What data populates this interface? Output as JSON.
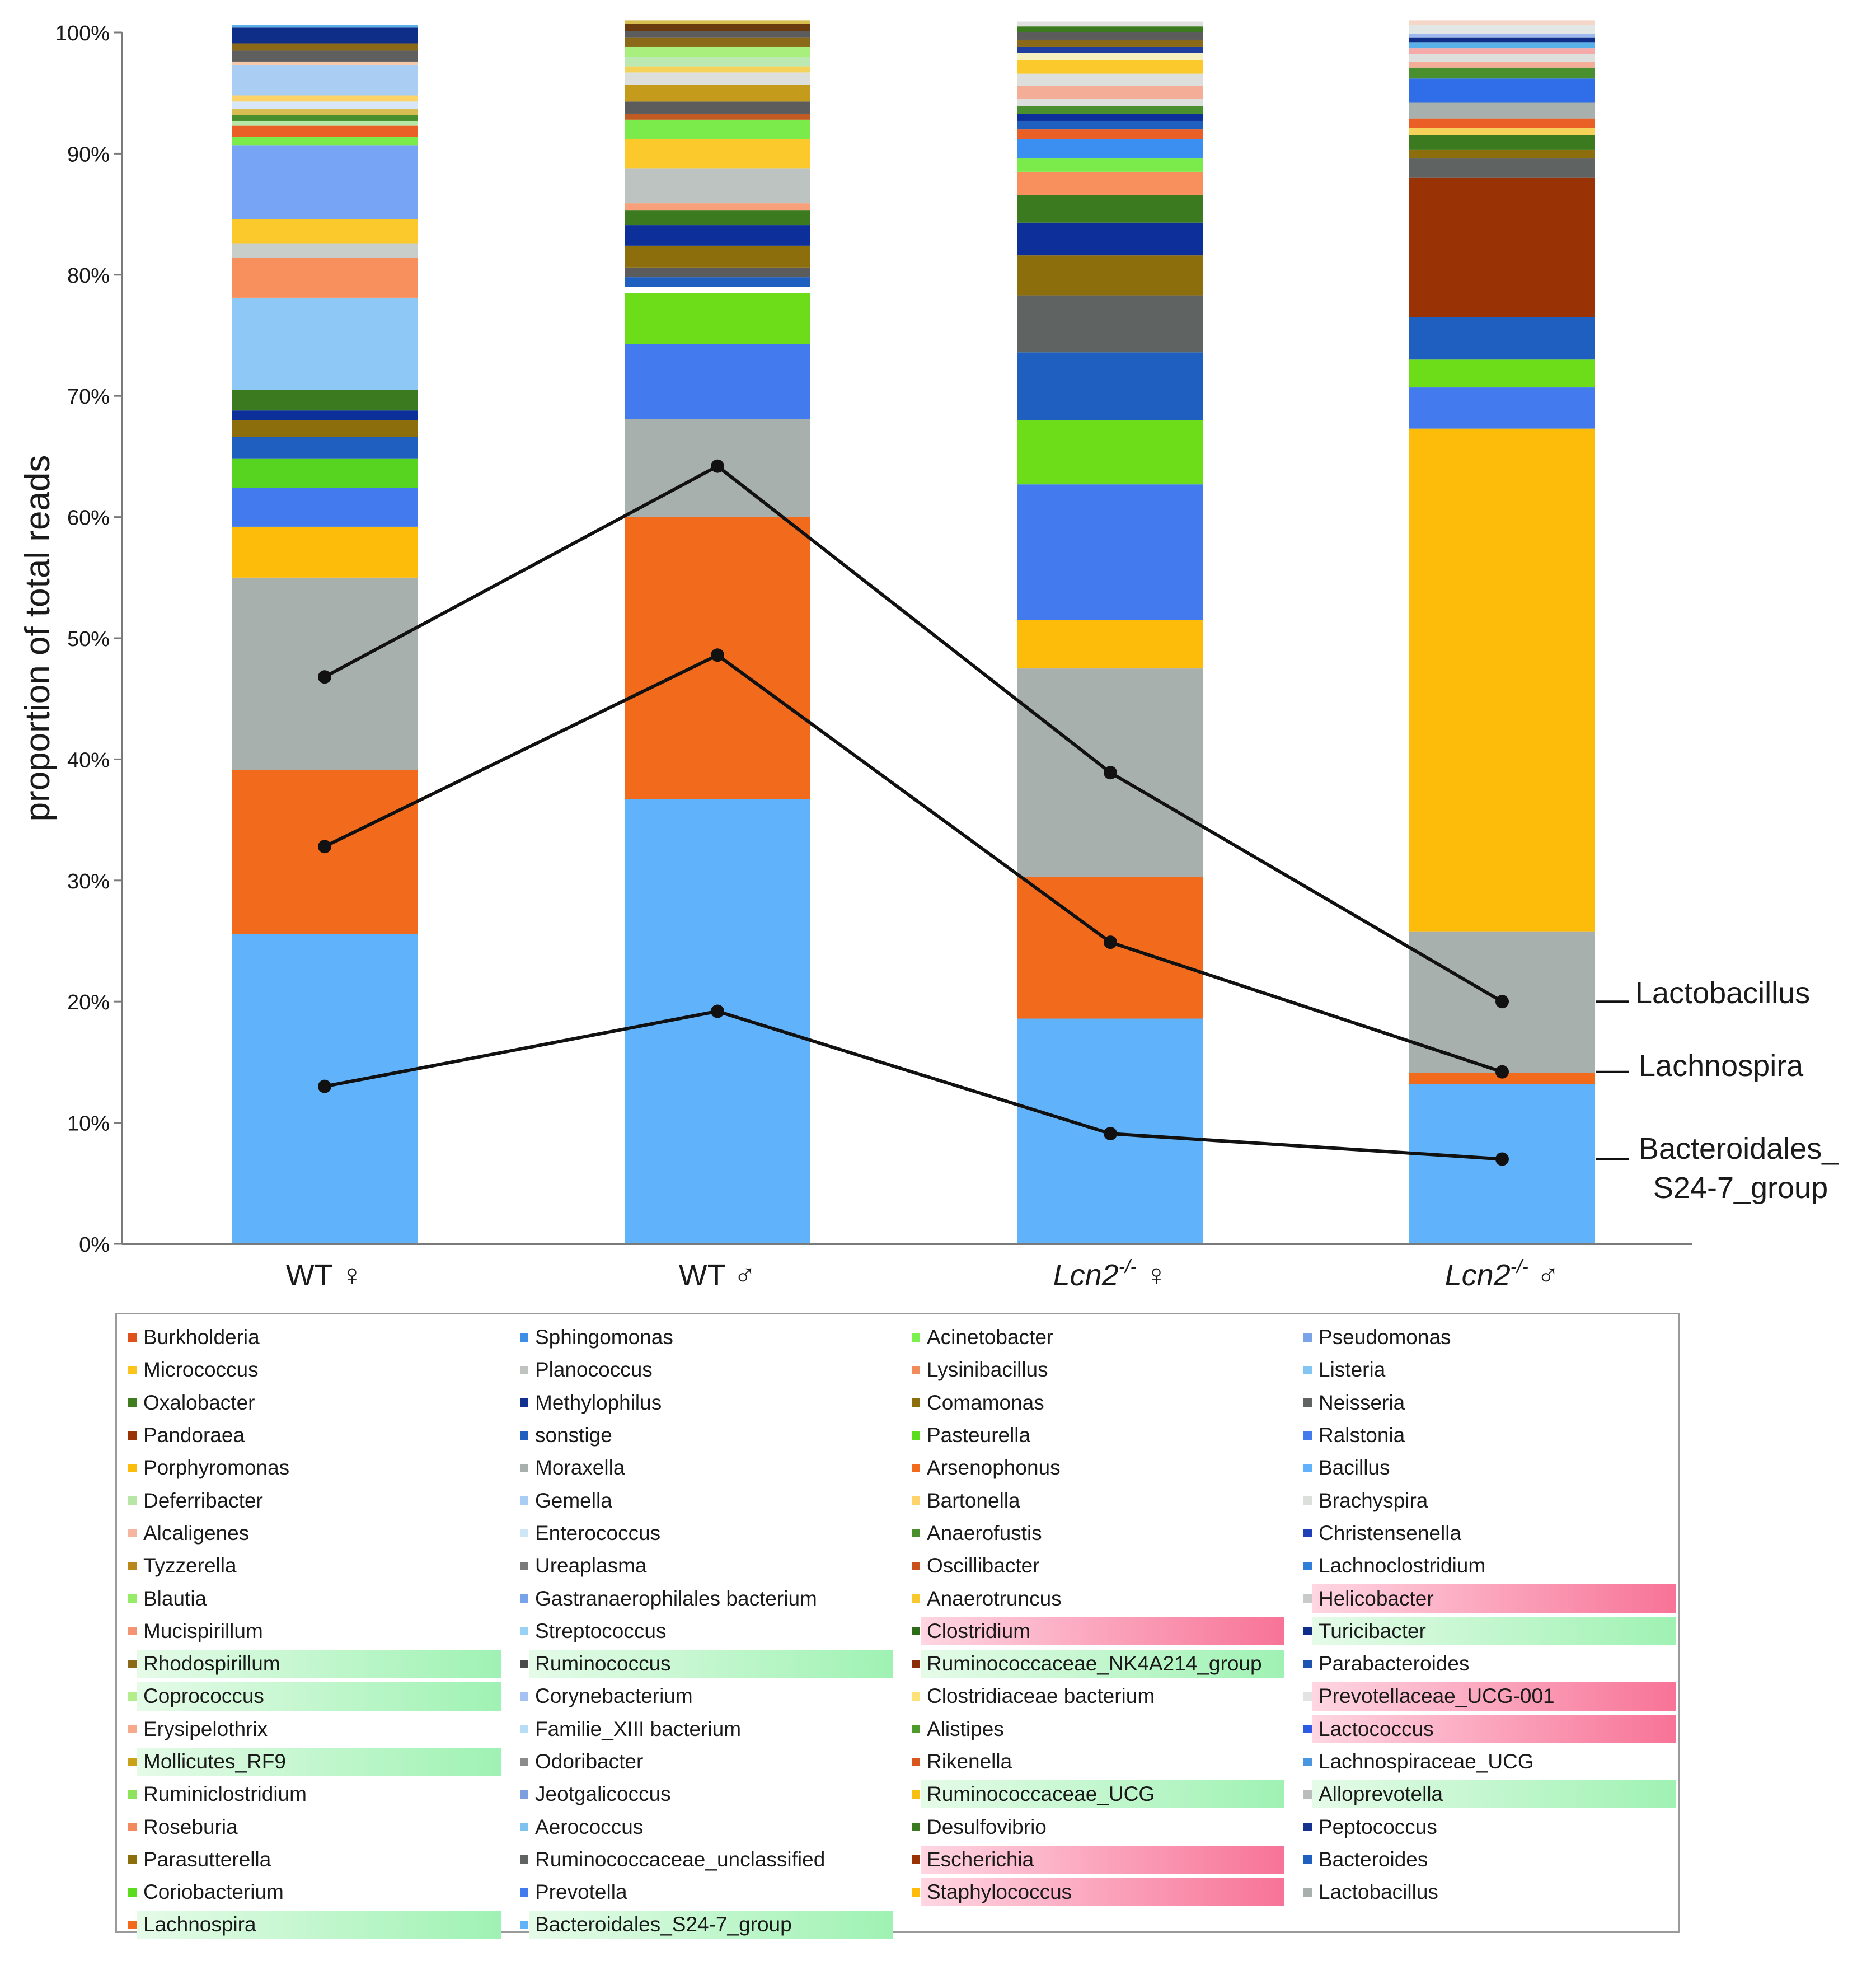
{
  "chart_data": {
    "type": "bar",
    "stacked": true,
    "ylabel": "proportion of total reads",
    "ylim": [
      0,
      100
    ],
    "y_ticks": [
      "0%",
      "10%",
      "20%",
      "30%",
      "40%",
      "50%",
      "60%",
      "70%",
      "80%",
      "90%",
      "100%"
    ],
    "groups": [
      {
        "prefix": "WT",
        "sup": "",
        "sym": "♀"
      },
      {
        "prefix": "WT",
        "sup": "",
        "sym": "♂"
      },
      {
        "prefix": "Lcn2",
        "sup": "-/-",
        "sym": "♀"
      },
      {
        "prefix": "Lcn2",
        "sup": "-/-",
        "sym": "♂"
      }
    ],
    "stacks": [
      [
        {
          "v": 25.6,
          "c": "#60b3fa"
        },
        {
          "v": 13.5,
          "c": "#f26a1b"
        },
        {
          "v": 15.9,
          "c": "#a8b0ad"
        },
        {
          "v": 4.2,
          "c": "#fdbb0a"
        },
        {
          "v": 3.2,
          "c": "#437bef"
        },
        {
          "v": 2.4,
          "c": "#57d41f"
        },
        {
          "v": 1.8,
          "c": "#1e5fbf"
        },
        {
          "v": 1.4,
          "c": "#8c6e0d"
        },
        {
          "v": 0.8,
          "c": "#0c2f99"
        },
        {
          "v": 1.7,
          "c": "#3c7a1f"
        },
        {
          "v": 7.6,
          "c": "#8dc8f6"
        },
        {
          "v": 3.3,
          "c": "#f8905d"
        },
        {
          "v": 1.2,
          "c": "#c8cec9"
        },
        {
          "v": 2.0,
          "c": "#fcc92c"
        },
        {
          "v": 6.1,
          "c": "#77a4f5"
        },
        {
          "v": 0.7,
          "c": "#7bea4b"
        },
        {
          "v": 0.9,
          "c": "#e95f26"
        },
        {
          "v": 0.4,
          "c": "#b8e6a6"
        },
        {
          "v": 0.5,
          "c": "#4a8f2d"
        },
        {
          "v": 0.5,
          "c": "#d8be50"
        },
        {
          "v": 0.6,
          "c": "#d7e7f7"
        },
        {
          "v": 0.5,
          "c": "#fdd36a"
        },
        {
          "v": 2.5,
          "c": "#aacdf3"
        },
        {
          "v": 0.3,
          "c": "#f5c9a8"
        },
        {
          "v": 0.9,
          "c": "#5f5f5f"
        },
        {
          "v": 0.6,
          "c": "#8a6a18"
        },
        {
          "v": 1.3,
          "c": "#0f2e88"
        },
        {
          "v": 0.2,
          "c": "#5ab0e8"
        }
      ],
      [
        {
          "v": 36.7,
          "c": "#60b3fa"
        },
        {
          "v": 23.3,
          "c": "#f26a1b"
        },
        {
          "v": 8.1,
          "c": "#a8b0ad"
        },
        {
          "v": 6.2,
          "c": "#437bef"
        },
        {
          "v": 4.2,
          "c": "#6ddd1a"
        },
        {
          "v": 0.5,
          "c": "#ffffff"
        },
        {
          "v": 0.8,
          "c": "#1e5fbf"
        },
        {
          "v": 0.8,
          "c": "#5c5c5c"
        },
        {
          "v": 1.8,
          "c": "#8c6e0d"
        },
        {
          "v": 1.7,
          "c": "#0c2f99"
        },
        {
          "v": 1.2,
          "c": "#3c7a1f"
        },
        {
          "v": 0.6,
          "c": "#f8a07a"
        },
        {
          "v": 2.9,
          "c": "#bdc3c0"
        },
        {
          "v": 2.4,
          "c": "#fcc92c"
        },
        {
          "v": 1.6,
          "c": "#7bea4b"
        },
        {
          "v": 0.5,
          "c": "#c15b21"
        },
        {
          "v": 1.0,
          "c": "#5c5c5c"
        },
        {
          "v": 1.4,
          "c": "#c49b1a"
        },
        {
          "v": 1.0,
          "c": "#dcdfdc"
        },
        {
          "v": 0.5,
          "c": "#f5d25a"
        },
        {
          "v": 0.8,
          "c": "#bce8b2"
        },
        {
          "v": 0.8,
          "c": "#a9ef7d"
        },
        {
          "v": 0.8,
          "c": "#8a6a18"
        },
        {
          "v": 0.5,
          "c": "#5c5c5c"
        },
        {
          "v": 0.6,
          "c": "#6b3b10"
        },
        {
          "v": 0.3,
          "c": "#d8be50"
        }
      ],
      [
        {
          "v": 18.6,
          "c": "#60b3fa"
        },
        {
          "v": 11.7,
          "c": "#f26a1b"
        },
        {
          "v": 17.2,
          "c": "#a8b0ad"
        },
        {
          "v": 4.0,
          "c": "#fdbb0a"
        },
        {
          "v": 11.2,
          "c": "#437bef"
        },
        {
          "v": 5.3,
          "c": "#6ddd1a"
        },
        {
          "v": 5.6,
          "c": "#1e5fbf"
        },
        {
          "v": 4.7,
          "c": "#5f6361"
        },
        {
          "v": 3.3,
          "c": "#8c6e0d"
        },
        {
          "v": 2.7,
          "c": "#0c2f99"
        },
        {
          "v": 2.3,
          "c": "#3c7a1f"
        },
        {
          "v": 1.9,
          "c": "#f8905d"
        },
        {
          "v": 1.1,
          "c": "#7bea4b"
        },
        {
          "v": 1.6,
          "c": "#3a8ff0"
        },
        {
          "v": 0.8,
          "c": "#e95f26"
        },
        {
          "v": 0.7,
          "c": "#1e5fbf"
        },
        {
          "v": 0.6,
          "c": "#0c2f99"
        },
        {
          "v": 0.6,
          "c": "#4a8f2d"
        },
        {
          "v": 0.6,
          "c": "#dcdfdc"
        },
        {
          "v": 1.1,
          "c": "#f4ae98"
        },
        {
          "v": 1.0,
          "c": "#dcdfdc"
        },
        {
          "v": 1.1,
          "c": "#fcc92c"
        },
        {
          "v": 0.6,
          "c": "#f5f0c0"
        },
        {
          "v": 0.5,
          "c": "#1e3f9f"
        },
        {
          "v": 0.6,
          "c": "#8a6a18"
        },
        {
          "v": 0.6,
          "c": "#5c5c5c"
        },
        {
          "v": 0.5,
          "c": "#3c7a1f"
        },
        {
          "v": 0.4,
          "c": "#e0e0e0"
        }
      ],
      [
        {
          "v": 13.2,
          "c": "#60b3fa"
        },
        {
          "v": 0.9,
          "c": "#f26a1b"
        },
        {
          "v": 11.7,
          "c": "#a8b0ad"
        },
        {
          "v": 41.5,
          "c": "#fdbb0a"
        },
        {
          "v": 3.4,
          "c": "#437bef"
        },
        {
          "v": 2.3,
          "c": "#6ddd1a"
        },
        {
          "v": 3.5,
          "c": "#1e5fbf"
        },
        {
          "v": 11.5,
          "c": "#993306"
        },
        {
          "v": 1.6,
          "c": "#5f6361"
        },
        {
          "v": 0.7,
          "c": "#8c6e0d"
        },
        {
          "v": 1.2,
          "c": "#3c7a1f"
        },
        {
          "v": 0.6,
          "c": "#f5d25a"
        },
        {
          "v": 0.8,
          "c": "#e95f26"
        },
        {
          "v": 1.3,
          "c": "#a8b0ad"
        },
        {
          "v": 2.0,
          "c": "#2f6ee8"
        },
        {
          "v": 0.9,
          "c": "#4a8f2d"
        },
        {
          "v": 0.5,
          "c": "#f4ae98"
        },
        {
          "v": 0.6,
          "c": "#dcdfdc"
        },
        {
          "v": 0.5,
          "c": "#f6a9a9"
        },
        {
          "v": 0.5,
          "c": "#5ab0e8"
        },
        {
          "v": 0.4,
          "c": "#0f2e88"
        },
        {
          "v": 0.3,
          "c": "#9db8ef"
        },
        {
          "v": 0.7,
          "c": "#e2e6e4"
        },
        {
          "v": 0.4,
          "c": "#f4d7c8"
        }
      ]
    ],
    "lines": [
      {
        "name": "Lactobacillus",
        "values": [
          46.8,
          64.2,
          38.9,
          20.0
        ]
      },
      {
        "name": "Lachnospira",
        "values": [
          32.8,
          48.6,
          24.9,
          14.2
        ]
      },
      {
        "name": "Bacteroidales_ S24-7_group",
        "values": [
          13.0,
          19.2,
          9.1,
          7.0
        ]
      }
    ],
    "line_labels": [
      "Lactobacillus",
      "Lachnospira",
      "Bacteroidales_",
      "S24-7_group"
    ],
    "legend": [
      {
        "label": "Burkholderia",
        "color": "#e0521c",
        "hl": ""
      },
      {
        "label": "Sphingomonas",
        "color": "#3f8fe8",
        "hl": ""
      },
      {
        "label": "Acinetobacter",
        "color": "#7cf04f",
        "hl": ""
      },
      {
        "label": "Pseudomonas",
        "color": "#7ba4e8",
        "hl": ""
      },
      {
        "label": "Micrococcus",
        "color": "#fbc51d",
        "hl": ""
      },
      {
        "label": "Planococcus",
        "color": "#bfc4c1",
        "hl": ""
      },
      {
        "label": "Lysinibacillus",
        "color": "#f48b5a",
        "hl": ""
      },
      {
        "label": "Listeria",
        "color": "#82c7f4",
        "hl": ""
      },
      {
        "label": "Oxalobacter",
        "color": "#3f7d1f",
        "hl": ""
      },
      {
        "label": "Methylophilus",
        "color": "#12308f",
        "hl": ""
      },
      {
        "label": "Comamonas",
        "color": "#8c6e0d",
        "hl": ""
      },
      {
        "label": "Neisseria",
        "color": "#5f6361",
        "hl": ""
      },
      {
        "label": "Pandoraea",
        "color": "#993306",
        "hl": ""
      },
      {
        "label": "sonstige",
        "color": "#1e5fbf",
        "hl": ""
      },
      {
        "label": "Pasteurella",
        "color": "#5cdc1f",
        "hl": ""
      },
      {
        "label": "Ralstonia",
        "color": "#437bef",
        "hl": ""
      },
      {
        "label": "Porphyromonas",
        "color": "#fdbb0a",
        "hl": ""
      },
      {
        "label": "Moraxella",
        "color": "#a8b0ad",
        "hl": ""
      },
      {
        "label": "Arsenophonus",
        "color": "#f26a1b",
        "hl": ""
      },
      {
        "label": "Bacillus",
        "color": "#60b3fa",
        "hl": ""
      },
      {
        "label": "Deferribacter",
        "color": "#b8e6a6",
        "hl": ""
      },
      {
        "label": "Gemella",
        "color": "#aacdf3",
        "hl": ""
      },
      {
        "label": "Bartonella",
        "color": "#fdd36a",
        "hl": ""
      },
      {
        "label": "Brachyspira",
        "color": "#dcdfdc",
        "hl": ""
      },
      {
        "label": "Alcaligenes",
        "color": "#f5b6a0",
        "hl": ""
      },
      {
        "label": "Enterococcus",
        "color": "#cde7f6",
        "hl": ""
      },
      {
        "label": "Anaerofustis",
        "color": "#4a8f2d",
        "hl": ""
      },
      {
        "label": "Christensenella",
        "color": "#1f3fb8",
        "hl": ""
      },
      {
        "label": "Tyzzerella",
        "color": "#b9871a",
        "hl": ""
      },
      {
        "label": "Ureaplasma",
        "color": "#7a7a7a",
        "hl": ""
      },
      {
        "label": "Oscillibacter",
        "color": "#c9521c",
        "hl": ""
      },
      {
        "label": "Lachnoclostridium",
        "color": "#2f7fd8",
        "hl": ""
      },
      {
        "label": "Blautia",
        "color": "#96ec66",
        "hl": ""
      },
      {
        "label": "Gastranaerophilales bacterium",
        "color": "#78a2ea",
        "hl": ""
      },
      {
        "label": "Anaerotruncus",
        "color": "#f7c92e",
        "hl": ""
      },
      {
        "label": "Helicobacter",
        "color": "#c8cbc9",
        "hl": "pink"
      },
      {
        "label": "Mucispirillum",
        "color": "#f39574",
        "hl": ""
      },
      {
        "label": "Streptococcus",
        "color": "#9ad2f6",
        "hl": ""
      },
      {
        "label": "Clostridium",
        "color": "#2e6b17",
        "hl": "pink"
      },
      {
        "label": "Turicibacter",
        "color": "#0f2e88",
        "hl": "green"
      },
      {
        "label": "Rhodospirillum",
        "color": "#8a6a18",
        "hl": "green"
      },
      {
        "label": "Ruminococcus",
        "color": "#4a4a4a",
        "hl": "green"
      },
      {
        "label": "Ruminococcaceae_NK4A214_group",
        "color": "#8a2e08",
        "hl": "green"
      },
      {
        "label": "Parabacteroides",
        "color": "#1c55b0",
        "hl": ""
      },
      {
        "label": "Coprococcus",
        "color": "#b4ed8c",
        "hl": "green"
      },
      {
        "label": "Corynebacterium",
        "color": "#a6c2f2",
        "hl": ""
      },
      {
        "label": "Clostridiaceae bacterium",
        "color": "#fde27a",
        "hl": ""
      },
      {
        "label": "Prevotellaceae_UCG-001",
        "color": "#e2e4e3",
        "hl": "pink"
      },
      {
        "label": "Erysipelothrix",
        "color": "#f7a98c",
        "hl": ""
      },
      {
        "label": "Familie_XIII bacterium",
        "color": "#b6dcf6",
        "hl": ""
      },
      {
        "label": "Alistipes",
        "color": "#4e9a2a",
        "hl": ""
      },
      {
        "label": "Lactococcus",
        "color": "#2d5be3",
        "hl": "pink"
      },
      {
        "label": "Mollicutes_RF9",
        "color": "#c9a21a",
        "hl": "green"
      },
      {
        "label": "Odoribacter",
        "color": "#8c8c8c",
        "hl": ""
      },
      {
        "label": "Rikenella",
        "color": "#d9561d",
        "hl": ""
      },
      {
        "label": "Lachnospiraceae_UCG",
        "color": "#4a96e0",
        "hl": ""
      },
      {
        "label": "Ruminiclostridium",
        "color": "#8de45a",
        "hl": ""
      },
      {
        "label": "Jeotgalicoccus",
        "color": "#7d9fe0",
        "hl": ""
      },
      {
        "label": "Ruminococcaceae_UCG",
        "color": "#f9c014",
        "hl": "green"
      },
      {
        "label": "Alloprevotella",
        "color": "#b9bdbb",
        "hl": "green"
      },
      {
        "label": "Roseburia",
        "color": "#f28a5d",
        "hl": ""
      },
      {
        "label": "Aerococcus",
        "color": "#7fc1ef",
        "hl": ""
      },
      {
        "label": "Desulfovibrio",
        "color": "#3c7a1f",
        "hl": ""
      },
      {
        "label": "Peptococcus",
        "color": "#17318f",
        "hl": ""
      },
      {
        "label": "Parasutterella",
        "color": "#8c6e0d",
        "hl": ""
      },
      {
        "label": "Ruminococcaceae_unclassified",
        "color": "#5f6361",
        "hl": ""
      },
      {
        "label": "Escherichia",
        "color": "#993306",
        "hl": "pink"
      },
      {
        "label": "Bacteroides",
        "color": "#1e5fbf",
        "hl": ""
      },
      {
        "label": "Coriobacterium",
        "color": "#5cdc1f",
        "hl": ""
      },
      {
        "label": "Prevotella",
        "color": "#437bef",
        "hl": ""
      },
      {
        "label": "Staphylococcus",
        "color": "#fdbb0a",
        "hl": "pink"
      },
      {
        "label": "Lactobacillus",
        "color": "#a8b0ad",
        "hl": ""
      },
      {
        "label": "Lachnospira",
        "color": "#f26a1b",
        "hl": "green"
      },
      {
        "label": "Bacteroidales_S24-7_group",
        "color": "#60b3fa",
        "hl": "green"
      }
    ]
  }
}
